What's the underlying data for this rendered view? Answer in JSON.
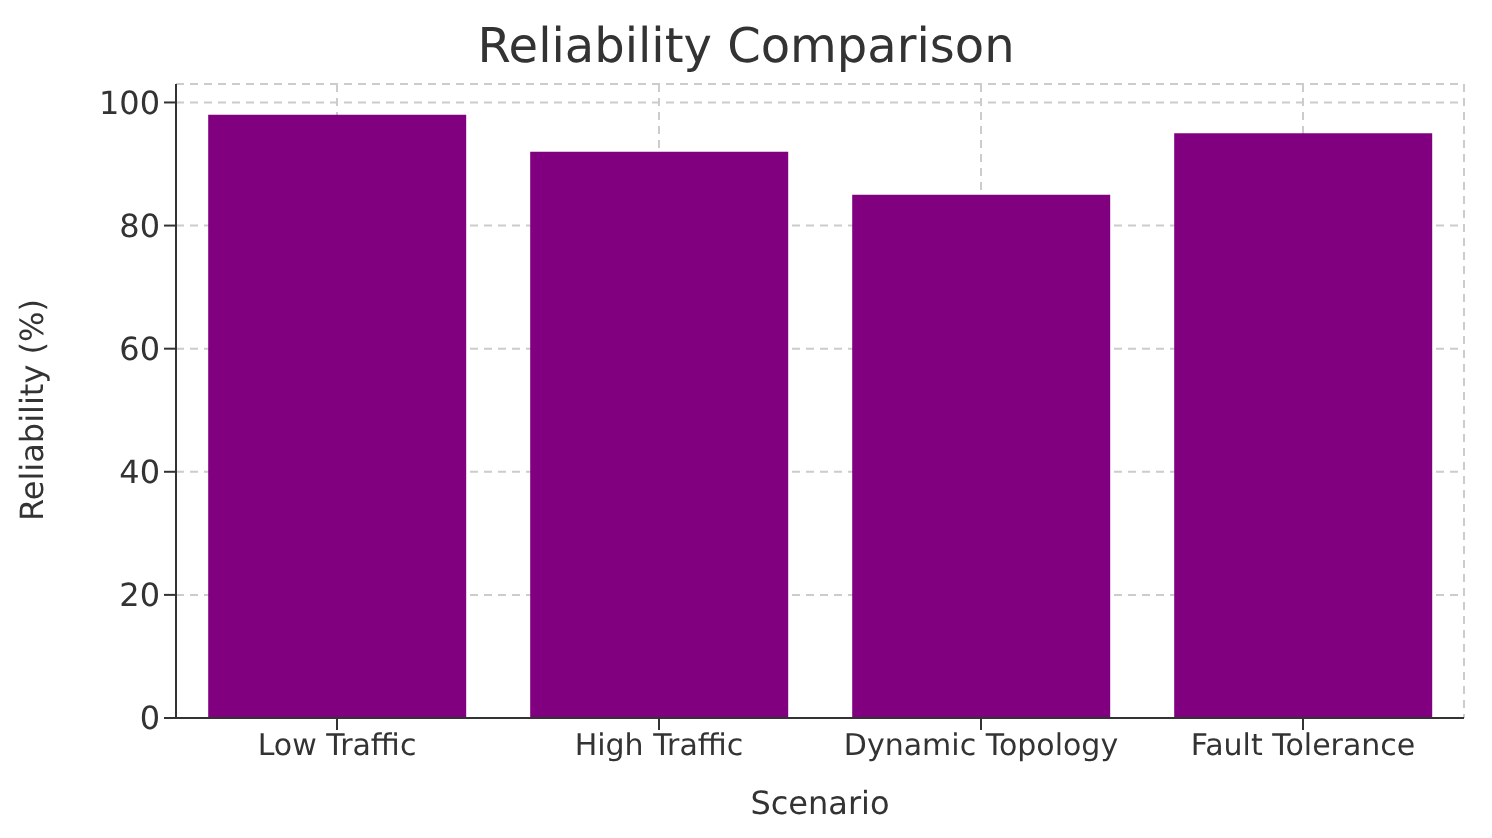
{
  "chart_data": {
    "type": "bar",
    "title": "Reliability Comparison",
    "xlabel": "Scenario",
    "ylabel": "Reliability (%)",
    "categories": [
      "Low Traffic",
      "High Traffic",
      "Dynamic Topology",
      "Fault Tolerance"
    ],
    "values": [
      98,
      92,
      85,
      95
    ],
    "color": "#800080",
    "ylim": [
      0,
      103
    ],
    "yticks": [
      0,
      20,
      40,
      60,
      80,
      100
    ],
    "grid": true
  }
}
